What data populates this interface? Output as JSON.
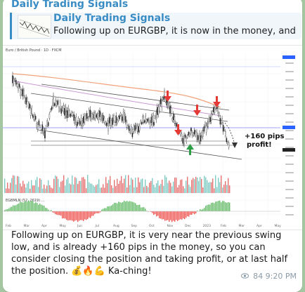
{
  "channel": {
    "name": "Daily Trading Signals"
  },
  "reply": {
    "title": "Daily Trading Signals",
    "text": "Following up on EURGBP, it is now in the money, and has ..."
  },
  "chart": {
    "header": "Euro / British Pound · 1D · FXCM",
    "annotation_line1": "+160 pips",
    "annotation_line2": "profit!",
    "lower_indicator_label": "EGBMLN (52, 2619) ...",
    "months": [
      "Feb",
      "Mar",
      "Apr",
      "May",
      "Jun",
      "Jul",
      "Aug",
      "Sep",
      "Oct",
      "Nov",
      "Dec",
      "2023",
      "Feb",
      "Mar",
      "Apr",
      "May"
    ],
    "colors": {
      "down_arrow": "#e53935",
      "up_arrow": "#2e9e45",
      "price_tag": "#2962ff"
    }
  },
  "message": {
    "text": "Following up on EURGBP, it is very near the previous swing low, and is already +160 pips in the money, so you can consider closing the position and taking profit, or at last half the position. 💰🔥💪 Ka-ching!"
  },
  "meta": {
    "views": "84",
    "time": "9:20 PM"
  }
}
